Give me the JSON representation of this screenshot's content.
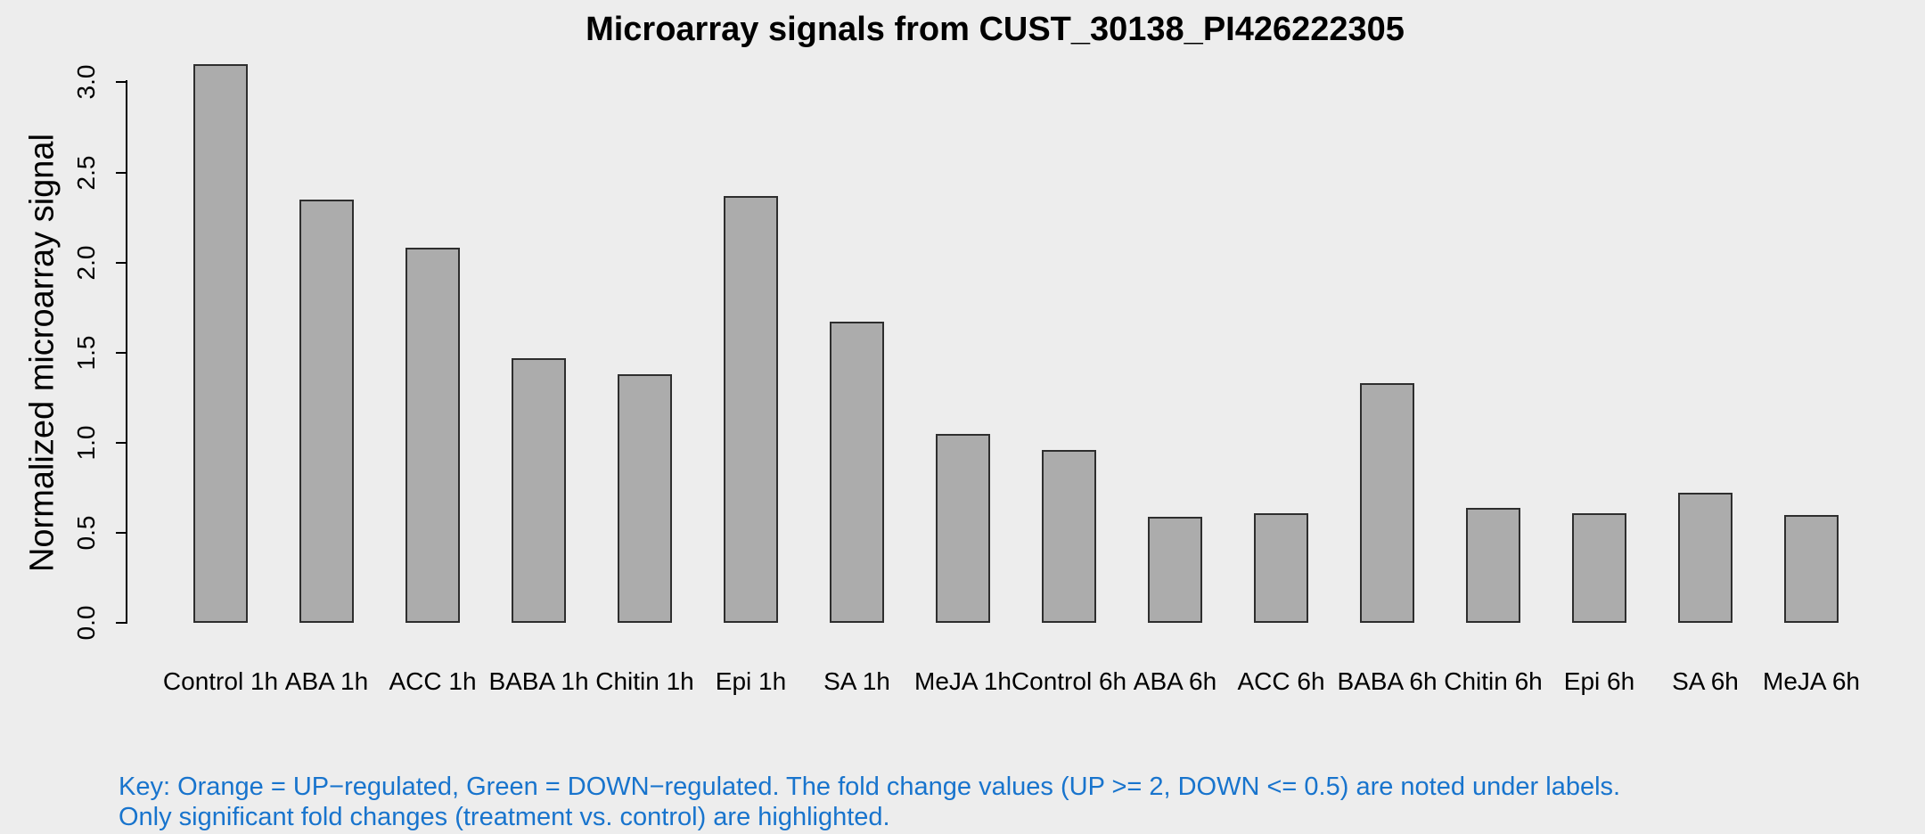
{
  "title": "Microarray signals from CUST_30138_PI426222305",
  "y_axis": {
    "label": "Normalized microarray signal"
  },
  "footer": {
    "line1": "Key: Orange = UP−regulated, Green = DOWN−regulated. The fold change values (UP >= 2, DOWN <= 0.5) are noted under labels.",
    "line2": "Only significant fold changes (treatment vs. control) are highlighted.",
    "color": "#1874CD"
  },
  "chart_data": {
    "type": "bar",
    "title": "Microarray signals from CUST_30138_PI426222305",
    "xlabel": "",
    "ylabel": "Normalized microarray signal",
    "categories": [
      "Control 1h",
      "ABA 1h",
      "ACC 1h",
      "BABA 1h",
      "Chitin 1h",
      "Epi 1h",
      "SA 1h",
      "MeJA 1h",
      "Control 6h",
      "ABA 6h",
      "ACC 6h",
      "BABA 6h",
      "Chitin 6h",
      "Epi 6h",
      "SA 6h",
      "MeJA 6h"
    ],
    "values": [
      3.1,
      2.35,
      2.08,
      1.47,
      1.38,
      2.37,
      1.67,
      1.05,
      0.96,
      0.59,
      0.61,
      1.33,
      0.64,
      0.61,
      0.72,
      0.6
    ],
    "yticks": [
      0.0,
      0.5,
      1.0,
      1.5,
      2.0,
      2.5,
      3.0
    ],
    "ylim": [
      0,
      3.1
    ],
    "grid": false,
    "legend": "none",
    "bar_color": "#ACACAC",
    "bar_border_color": "#2E2E2E",
    "background_color": "#EDEDED",
    "text_color": "#000000"
  }
}
